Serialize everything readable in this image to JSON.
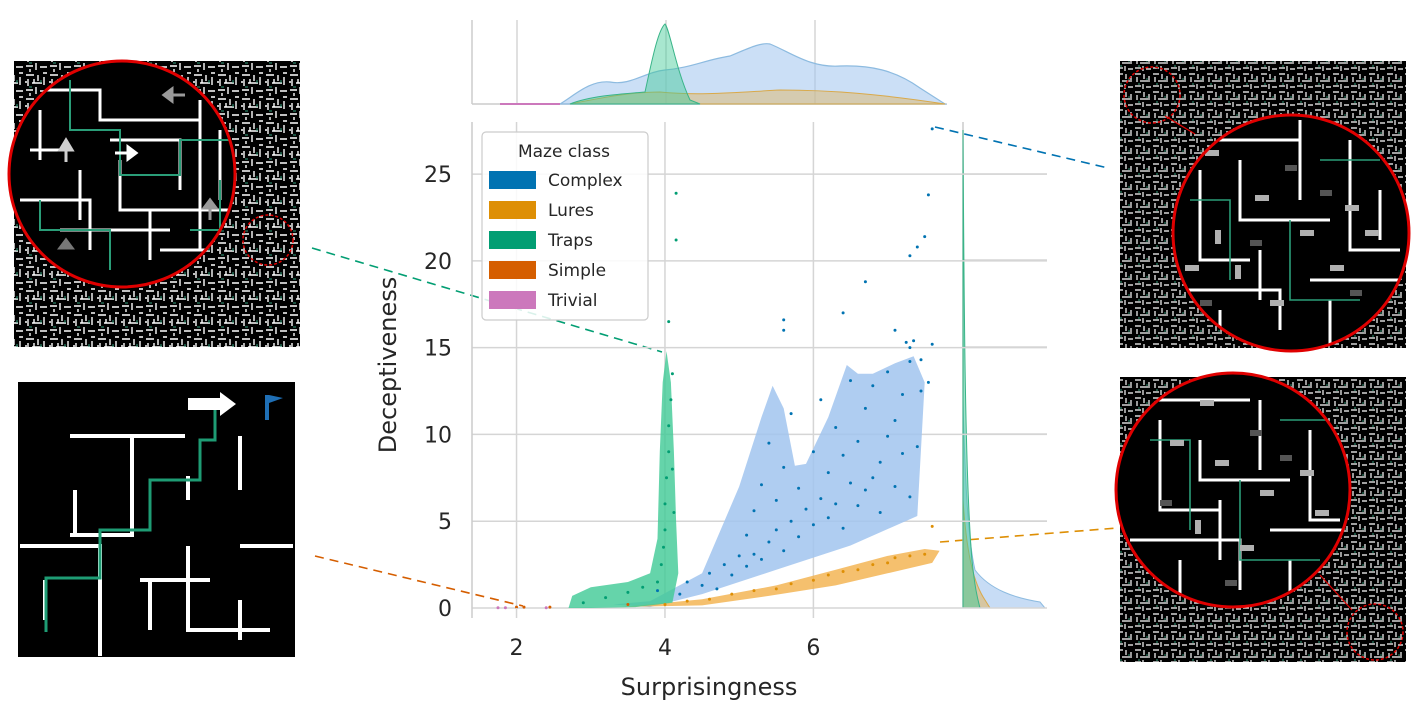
{
  "chart_data": {
    "type": "scatter",
    "xlabel": "Surprisingness",
    "ylabel": "Deceptiveness",
    "xlim": [
      1.4,
      7.8
    ],
    "ylim": [
      0,
      28
    ],
    "xticks": [
      2,
      4,
      6
    ],
    "yticks": [
      0,
      5,
      10,
      15,
      20,
      25
    ],
    "grid": true,
    "legend": {
      "title": "Maze class",
      "placement": "top-left",
      "entries": [
        "Complex",
        "Lures",
        "Traps",
        "Simple",
        "Trivial"
      ]
    },
    "colors": {
      "Complex": "#0173b2",
      "Lures": "#de8f05",
      "Traps": "#029e73",
      "Simple": "#d55e00",
      "Trivial": "#cc78bc",
      "complex_kde": "#a1c4ef",
      "traps_kde": "#3ec995",
      "lures_kde": "#f2b04a"
    },
    "series": [
      {
        "name": "Complex",
        "density_outline": [
          [
            3.3,
            0.2
          ],
          [
            3.8,
            0.4
          ],
          [
            4.5,
            2.0
          ],
          [
            5.0,
            7.0
          ],
          [
            5.3,
            11.0
          ],
          [
            5.45,
            12.8
          ],
          [
            5.6,
            11.5
          ],
          [
            5.75,
            8.2
          ],
          [
            5.9,
            8.3
          ],
          [
            6.2,
            11.0
          ],
          [
            6.45,
            14.0
          ],
          [
            6.6,
            13.5
          ],
          [
            6.8,
            13.5
          ],
          [
            7.1,
            14.1
          ],
          [
            7.35,
            14.5
          ],
          [
            7.5,
            13.0
          ],
          [
            7.4,
            5.3
          ],
          [
            6.5,
            3.6
          ],
          [
            5.5,
            2.2
          ],
          [
            4.5,
            0.8
          ],
          [
            3.8,
            0.05
          ]
        ],
        "points": [
          [
            3.9,
            1.0
          ],
          [
            4.2,
            0.8
          ],
          [
            4.3,
            1.5
          ],
          [
            4.5,
            1.3
          ],
          [
            4.6,
            2.0
          ],
          [
            4.7,
            1.1
          ],
          [
            4.8,
            2.5
          ],
          [
            4.9,
            1.9
          ],
          [
            5.0,
            3.0
          ],
          [
            5.1,
            2.4
          ],
          [
            5.1,
            4.2
          ],
          [
            5.2,
            3.1
          ],
          [
            5.2,
            5.6
          ],
          [
            5.3,
            2.8
          ],
          [
            5.3,
            7.1
          ],
          [
            5.4,
            3.8
          ],
          [
            5.4,
            9.5
          ],
          [
            5.5,
            4.5
          ],
          [
            5.5,
            6.2
          ],
          [
            5.6,
            3.3
          ],
          [
            5.6,
            8.1
          ],
          [
            5.7,
            5.0
          ],
          [
            5.7,
            11.2
          ],
          [
            5.8,
            4.1
          ],
          [
            5.8,
            6.9
          ],
          [
            5.9,
            5.7
          ],
          [
            6.0,
            4.8
          ],
          [
            6.0,
            9.0
          ],
          [
            6.1,
            6.3
          ],
          [
            6.1,
            12.0
          ],
          [
            6.2,
            5.2
          ],
          [
            6.2,
            7.8
          ],
          [
            6.3,
            6.0
          ],
          [
            6.3,
            10.4
          ],
          [
            6.4,
            4.6
          ],
          [
            6.4,
            8.8
          ],
          [
            6.5,
            7.2
          ],
          [
            6.5,
            13.1
          ],
          [
            6.6,
            5.9
          ],
          [
            6.6,
            9.6
          ],
          [
            6.7,
            6.8
          ],
          [
            6.7,
            11.5
          ],
          [
            6.8,
            7.5
          ],
          [
            6.8,
            12.8
          ],
          [
            6.9,
            8.4
          ],
          [
            6.9,
            5.5
          ],
          [
            7.0,
            9.9
          ],
          [
            7.0,
            13.6
          ],
          [
            7.1,
            7.0
          ],
          [
            7.1,
            10.8
          ],
          [
            7.2,
            8.9
          ],
          [
            7.2,
            12.3
          ],
          [
            7.3,
            6.4
          ],
          [
            7.3,
            14.2
          ],
          [
            7.4,
            9.3
          ],
          [
            5.6,
            16.6
          ],
          [
            5.6,
            16.0
          ],
          [
            6.4,
            17.0
          ],
          [
            6.7,
            18.8
          ],
          [
            7.1,
            16.0
          ],
          [
            7.25,
            15.3
          ],
          [
            7.3,
            15.0
          ],
          [
            7.35,
            15.4
          ],
          [
            7.45,
            14.3
          ],
          [
            7.45,
            12.5
          ],
          [
            7.55,
            13.0
          ],
          [
            7.6,
            15.2
          ],
          [
            7.3,
            20.3
          ],
          [
            7.4,
            20.8
          ],
          [
            7.5,
            21.4
          ],
          [
            7.55,
            23.8
          ],
          [
            7.6,
            27.6
          ]
        ]
      },
      {
        "name": "Lures",
        "density_outline": [
          [
            3.4,
            0.05
          ],
          [
            4.5,
            0.5
          ],
          [
            5.5,
            1.3
          ],
          [
            6.3,
            2.2
          ],
          [
            7.0,
            3.0
          ],
          [
            7.5,
            3.4
          ],
          [
            7.7,
            3.3
          ],
          [
            7.6,
            2.6
          ],
          [
            7.0,
            2.0
          ],
          [
            6.3,
            1.3
          ],
          [
            5.4,
            0.7
          ],
          [
            4.5,
            0.15
          ]
        ],
        "points": [
          [
            4.0,
            0.2
          ],
          [
            4.3,
            0.4
          ],
          [
            4.6,
            0.5
          ],
          [
            4.9,
            0.8
          ],
          [
            5.2,
            1.0
          ],
          [
            5.5,
            1.1
          ],
          [
            5.7,
            1.4
          ],
          [
            6.0,
            1.6
          ],
          [
            6.2,
            1.9
          ],
          [
            6.4,
            2.1
          ],
          [
            6.6,
            2.2
          ],
          [
            6.8,
            2.5
          ],
          [
            7.0,
            2.6
          ],
          [
            7.1,
            2.9
          ],
          [
            7.3,
            3.0
          ],
          [
            7.5,
            3.1
          ],
          [
            7.6,
            4.7
          ]
        ]
      },
      {
        "name": "Traps",
        "density_outline": [
          [
            2.7,
            0.0
          ],
          [
            2.75,
            0.7
          ],
          [
            3.0,
            1.2
          ],
          [
            3.5,
            1.5
          ],
          [
            3.8,
            2.0
          ],
          [
            3.9,
            4.0
          ],
          [
            3.93,
            9.0
          ],
          [
            3.97,
            13.0
          ],
          [
            4.02,
            14.8
          ],
          [
            4.08,
            13.0
          ],
          [
            4.12,
            9.0
          ],
          [
            4.15,
            5.0
          ],
          [
            4.18,
            2.0
          ],
          [
            4.1,
            0.3
          ],
          [
            3.6,
            0.05
          ],
          [
            3.0,
            0.0
          ]
        ],
        "points": [
          [
            2.9,
            0.3
          ],
          [
            3.2,
            0.6
          ],
          [
            3.5,
            0.9
          ],
          [
            3.7,
            1.2
          ],
          [
            3.9,
            1.5
          ],
          [
            3.95,
            2.5
          ],
          [
            3.98,
            3.5
          ],
          [
            4.0,
            4.5
          ],
          [
            4.0,
            6.0
          ],
          [
            4.02,
            7.5
          ],
          [
            4.05,
            9.0
          ],
          [
            4.05,
            10.5
          ],
          [
            4.08,
            12.0
          ],
          [
            4.1,
            13.5
          ],
          [
            4.1,
            8.0
          ],
          [
            4.12,
            5.5
          ],
          [
            4.05,
            16.5
          ],
          [
            4.15,
            21.2
          ],
          [
            4.15,
            23.9
          ]
        ]
      },
      {
        "name": "Simple",
        "points": [
          [
            2.0,
            0.05
          ],
          [
            2.1,
            0.05
          ],
          [
            2.45,
            0.05
          ],
          [
            3.5,
            0.2
          ]
        ]
      },
      {
        "name": "Trivial",
        "points": [
          [
            1.75,
            0.02
          ],
          [
            1.85,
            0.02
          ],
          [
            2.4,
            0.02
          ]
        ]
      }
    ]
  },
  "maze_thumbnails": [
    {
      "name": "trap-maze",
      "description_icon": "maze-zoomed-traps"
    },
    {
      "name": "simple-maze",
      "description_icon": "maze-simple"
    },
    {
      "name": "complex-maze",
      "description_icon": "maze-zoomed-complex"
    },
    {
      "name": "lures-maze",
      "description_icon": "maze-zoomed-lures"
    }
  ]
}
